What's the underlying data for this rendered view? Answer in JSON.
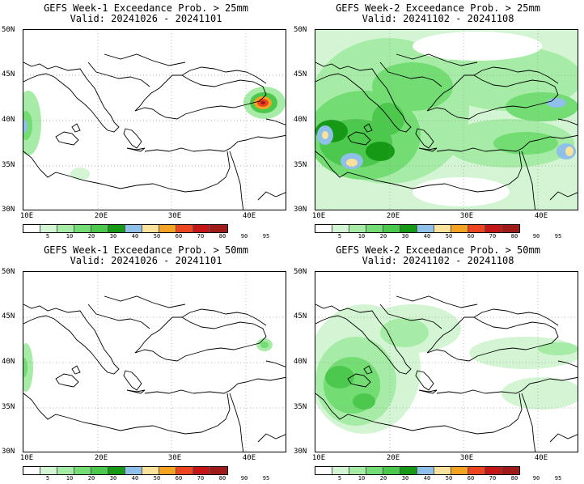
{
  "panels": [
    {
      "title": "GEFS Week-1 Exceedance Prob. > 25mm",
      "valid": "Valid: 20241026 - 20241101",
      "threshold_mm": 25,
      "week": 1,
      "precip_features": [
        {
          "level": 10,
          "location": "west edge (Sardinia / Tyrrhenian)"
        },
        {
          "level": 20,
          "location": "west edge near 40N"
        },
        {
          "level": 50,
          "location": "west edge near 40N"
        },
        {
          "level": 90,
          "location": "eastern Black Sea / Georgia coast"
        },
        {
          "level": 95,
          "location": "eastern Black Sea / Georgia coast"
        }
      ]
    },
    {
      "title": "GEFS Week-2 Exceedance Prob. > 25mm",
      "valid": "Valid: 20241102 - 20241108",
      "threshold_mm": 25,
      "week": 2,
      "precip_features": [
        {
          "level": 40,
          "location": "Balkans, Italy, Ionian Sea"
        },
        {
          "level": 60,
          "location": "Tyrrhenian Sea, eastern Black Sea, SE Turkey"
        },
        {
          "level": 70,
          "location": "Sardinia, Tunisia coast, SE Turkey"
        },
        {
          "level": 30,
          "location": "northern Turkey, Caucasus"
        }
      ]
    },
    {
      "title": "GEFS Week-1 Exceedance Prob. > 50mm",
      "valid": "Valid: 20241026 - 20241101",
      "threshold_mm": 50,
      "week": 1,
      "precip_features": [
        {
          "level": 20,
          "location": "west edge near 40N"
        },
        {
          "level": 30,
          "location": "eastern Black Sea coast"
        }
      ]
    },
    {
      "title": "GEFS Week-2 Exceedance Prob. > 50mm",
      "valid": "Valid: 20241102 - 20241108",
      "threshold_mm": 50,
      "week": 2,
      "precip_features": [
        {
          "level": 40,
          "location": "Tyrrhenian / Ionian Sea, Adriatic coast"
        },
        {
          "level": 20,
          "location": "northern Turkey, Caucasus, Levant"
        }
      ]
    }
  ],
  "axes": {
    "lat_labels": [
      "50N",
      "45N",
      "40N",
      "35N",
      "30N"
    ],
    "lon_labels": [
      "10E",
      "20E",
      "30E",
      "40E"
    ]
  },
  "colorbar": {
    "colors": [
      "#ffffff",
      "#d4f5d4",
      "#a6eca6",
      "#73dc73",
      "#4cc84c",
      "#169a16",
      "#8ec0ea",
      "#fae29a",
      "#f5a323",
      "#ed4520",
      "#c41616",
      "#a01a1a"
    ],
    "ticks": [
      "5",
      "10",
      "20",
      "30",
      "40",
      "50",
      "60",
      "70",
      "80",
      "90",
      "95"
    ]
  }
}
